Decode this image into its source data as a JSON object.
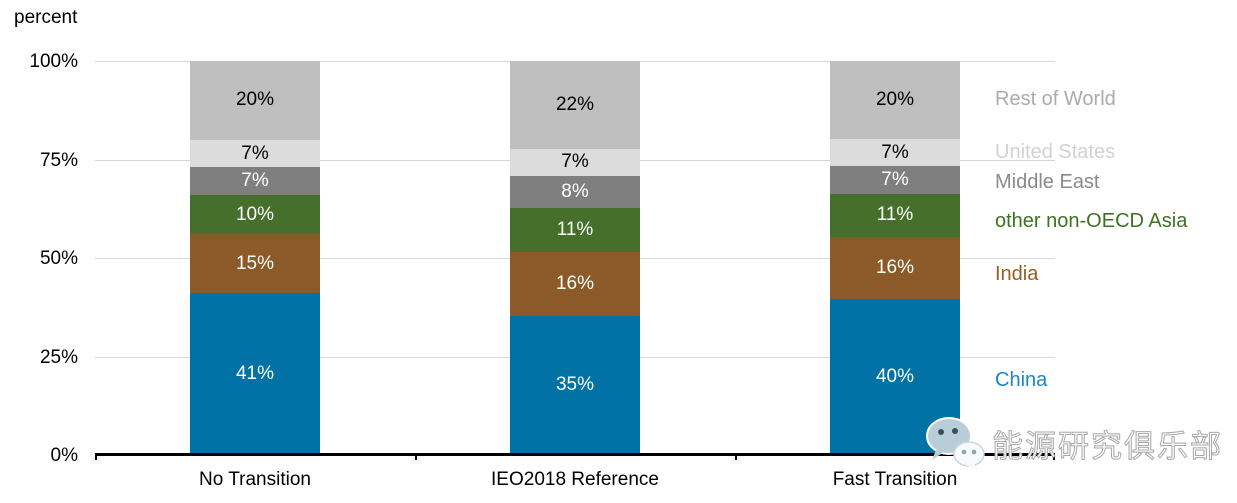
{
  "chart_data": {
    "type": "bar",
    "stacked": true,
    "title": "percent",
    "categories": [
      "No Transition",
      "IEO2018 Reference",
      "Fast Transition"
    ],
    "series": [
      {
        "name": "Rest of World",
        "values": [
          20,
          22,
          20
        ],
        "color": "#BFBFBF",
        "label_color": "#000000",
        "legend_color": "#ABABAB"
      },
      {
        "name": "United States",
        "values": [
          7,
          7,
          7
        ],
        "color": "#DCDCDC",
        "label_color": "#000000",
        "legend_color": "#D2D2D2"
      },
      {
        "name": "Middle East",
        "values": [
          7,
          8,
          7
        ],
        "color": "#7F7F7F",
        "label_color": "#FFFFFF",
        "legend_color": "#8A8A8A"
      },
      {
        "name": "other non-OECD Asia",
        "values": [
          10,
          11,
          11
        ],
        "color": "#456F2A",
        "label_color": "#FFFFFF",
        "legend_color": "#3E7222"
      },
      {
        "name": "India",
        "values": [
          15,
          16,
          16
        ],
        "color": "#8C5A28",
        "label_color": "#FFFFFF",
        "legend_color": "#9A5D20"
      },
      {
        "name": "China",
        "values": [
          41,
          35,
          40
        ],
        "color": "#0072A6",
        "label_color": "#FFFFFF",
        "legend_color": "#1887C9"
      }
    ],
    "value_suffix": "%",
    "y_ticks": [
      {
        "label": "100%",
        "value": 100
      },
      {
        "label": "75%",
        "value": 75
      },
      {
        "label": "50%",
        "value": 50
      },
      {
        "label": "25%",
        "value": 25
      },
      {
        "label": "0%",
        "value": 0
      }
    ],
    "ylim": [
      0,
      100
    ],
    "grid": true,
    "legend_position": "right",
    "axis_color": "#000000",
    "gridline_color": "#D6D6D6"
  },
  "watermark": {
    "text": "能源研究俱乐部",
    "icon": "wechat-icon"
  }
}
